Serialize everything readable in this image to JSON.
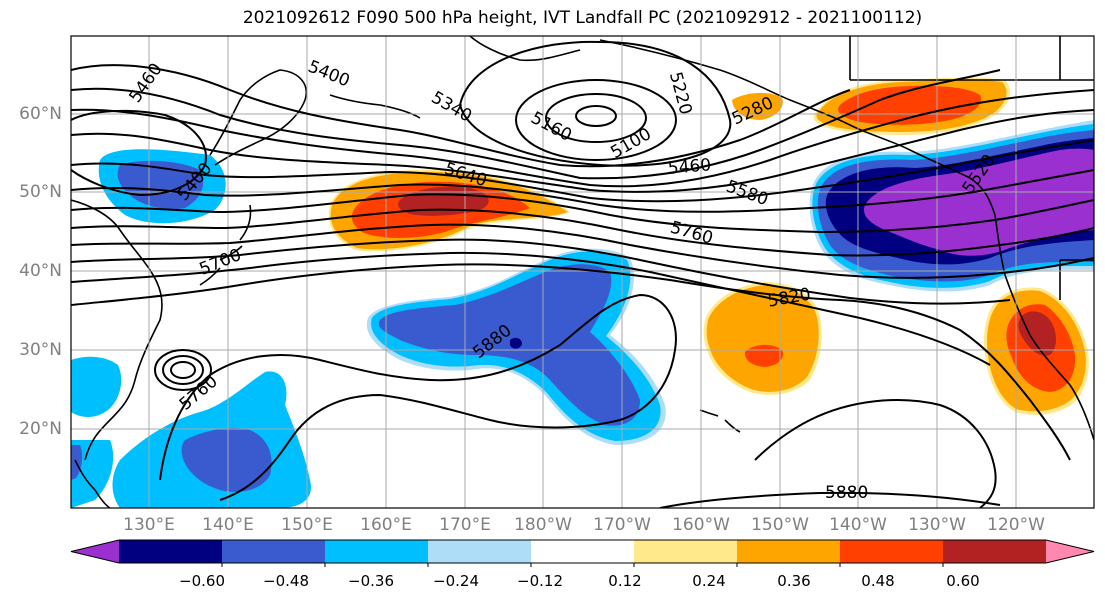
{
  "title": "2021092612 F090 500 hPa height, IVT Landfall PC (2021092912 - 2021100112)",
  "lat_labels": [
    "60°N",
    "50°N",
    "40°N",
    "30°N",
    "20°N"
  ],
  "lon_labels": [
    "130°E",
    "140°E",
    "150°E",
    "160°E",
    "170°E",
    "180°W",
    "170°W",
    "160°W",
    "150°W",
    "140°W",
    "130°W",
    "120°W"
  ],
  "colorbar": {
    "ticks": [
      "−0.60",
      "−0.48",
      "−0.36",
      "−0.24",
      "−0.12",
      "0.12",
      "0.24",
      "0.36",
      "0.48",
      "0.60"
    ],
    "colors": [
      "#9b30d0",
      "#000080",
      "#3a5ad0",
      "#00bfff",
      "#aeddf8",
      "#ffffff",
      "#ffe98a",
      "#ffa500",
      "#ff4000",
      "#b22222",
      "#ff88b0"
    ]
  },
  "contour_labels": [
    "5460",
    "5400",
    "5340",
    "5160",
    "5100",
    "5220",
    "5280",
    "5460",
    "5580",
    "5760",
    "5640",
    "5700",
    "5400",
    "5820",
    "5880",
    "5760",
    "5880",
    "5520"
  ],
  "colors": {
    "purple": "#9b30d0",
    "navy": "#000080",
    "royal_blue": "#3a5ad0",
    "sky_blue": "#00bfff",
    "light_blue": "#aeddf8",
    "light_yellow": "#ffe98a",
    "orange": "#ffa500",
    "red_orange": "#ff4000",
    "firebrick": "#b22222",
    "pink": "#ff88b0"
  }
}
